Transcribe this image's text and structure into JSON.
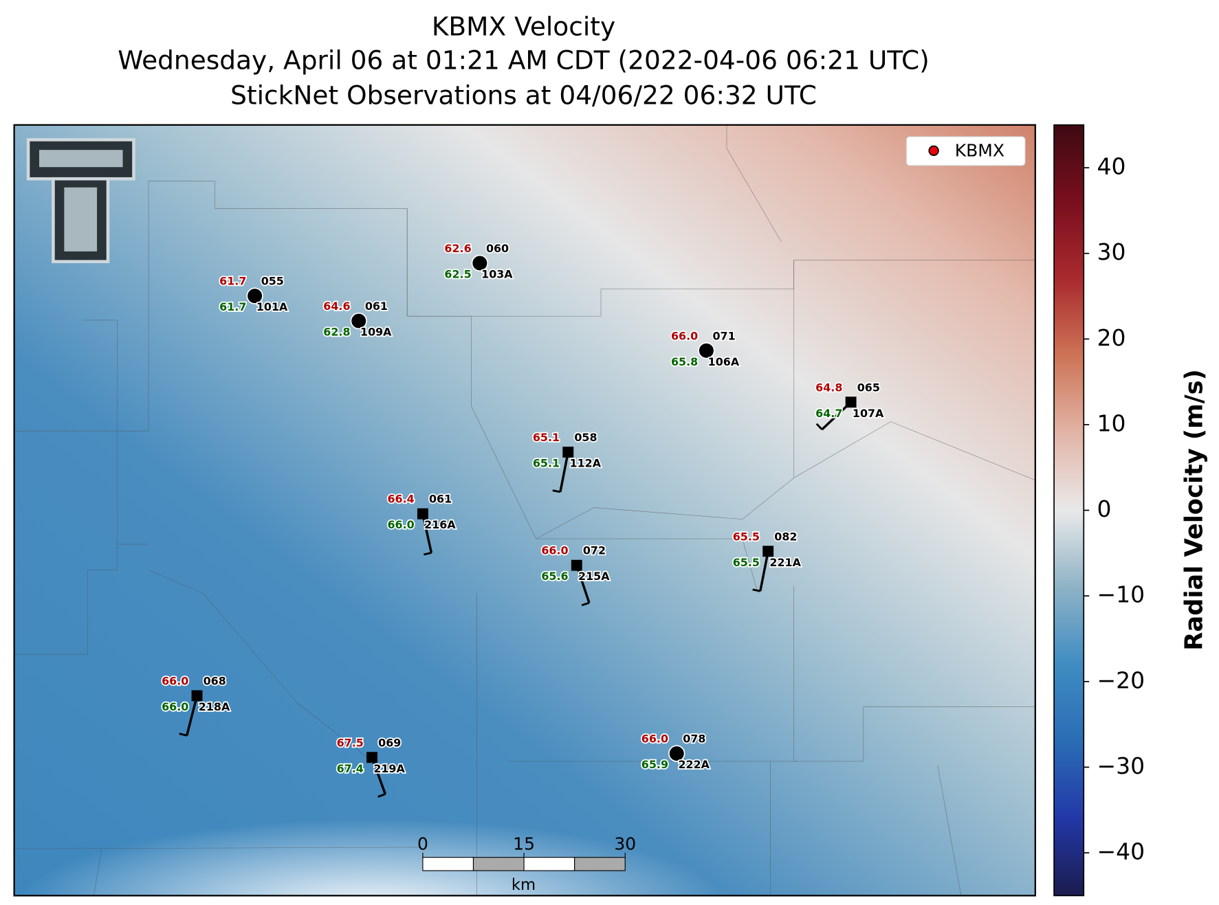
{
  "title": [
    "KBMX Velocity",
    "Wednesday, April 06 at 01:21 AM CDT (2022-04-06 06:21 UTC)",
    "StickNet Observations at 04/06/22 06:32 UTC"
  ],
  "legend": {
    "label": "KBMX",
    "color": "#e8000b"
  },
  "colorbar": {
    "label": "Radial Velocity (m/s)",
    "lim": [
      -45,
      45
    ],
    "ticks": [
      {
        "value": -40,
        "label": "−40"
      },
      {
        "value": -30,
        "label": "−30"
      },
      {
        "value": -20,
        "label": "−20"
      },
      {
        "value": -10,
        "label": "−10"
      },
      0,
      10,
      20,
      30,
      40
    ],
    "colormap": [
      "#1b1c4e",
      "#2338a8",
      "#2a6db5",
      "#3f8cc2",
      "#8eb2c6",
      "#e9e9e9",
      "#e2b4a6",
      "#cd7456",
      "#aa2a2e",
      "#7a0f1e",
      "#3f0a12"
    ]
  },
  "scalebar": {
    "lim": [
      0,
      30
    ],
    "ticks": [
      0,
      15,
      30
    ],
    "unit": "km"
  },
  "stations": [
    {
      "id": "101A",
      "temperature": "61.7",
      "dewpoint": "61.7",
      "wind_direction": "055"
    },
    {
      "id": "109A",
      "temperature": "64.6",
      "dewpoint": "62.8",
      "wind_direction": "061"
    },
    {
      "id": "103A",
      "temperature": "62.6",
      "dewpoint": "62.5",
      "wind_direction": "060"
    },
    {
      "id": "106A",
      "temperature": "66.0",
      "dewpoint": "65.8",
      "wind_direction": "071"
    },
    {
      "id": "107A",
      "temperature": "64.8",
      "dewpoint": "64.7",
      "wind_direction": "065"
    },
    {
      "id": "112A",
      "temperature": "65.1",
      "dewpoint": "65.1",
      "wind_direction": "058"
    },
    {
      "id": "216A",
      "temperature": "66.4",
      "dewpoint": "66.0",
      "wind_direction": "061"
    },
    {
      "id": "215A",
      "temperature": "66.0",
      "dewpoint": "65.6",
      "wind_direction": "072"
    },
    {
      "id": "221A",
      "temperature": "65.5",
      "dewpoint": "65.5",
      "wind_direction": "082"
    },
    {
      "id": "218A",
      "temperature": "66.0",
      "dewpoint": "66.0",
      "wind_direction": "068"
    },
    {
      "id": "219A",
      "temperature": "67.5",
      "dewpoint": "67.4",
      "wind_direction": "069"
    },
    {
      "id": "222A",
      "temperature": "66.0",
      "dewpoint": "65.9",
      "wind_direction": "078"
    }
  ]
}
